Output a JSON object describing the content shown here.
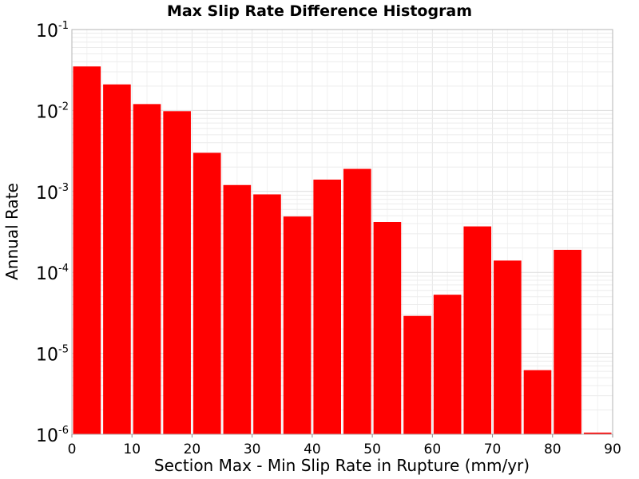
{
  "chart_data": {
    "type": "bar",
    "title": "Max Slip Rate Difference Histogram",
    "xlabel": "Section Max - Min Slip Rate in Rupture (mm/yr)",
    "ylabel": "Annual Rate",
    "x_scale": "linear",
    "y_scale": "log",
    "xlim": [
      0,
      90
    ],
    "ylim": [
      1e-06,
      0.1
    ],
    "x_ticks": [
      "0",
      "10",
      "20",
      "30",
      "40",
      "50",
      "60",
      "70",
      "80",
      "90"
    ],
    "y_ticks": [
      {
        "base": "10",
        "exp": "-1",
        "value": 0.1
      },
      {
        "base": "10",
        "exp": "-2",
        "value": 0.01
      },
      {
        "base": "10",
        "exp": "-3",
        "value": 0.001
      },
      {
        "base": "10",
        "exp": "-4",
        "value": 0.0001
      },
      {
        "base": "10",
        "exp": "-5",
        "value": 1e-05
      },
      {
        "base": "10",
        "exp": "-6",
        "value": 1e-06
      }
    ],
    "grid": true,
    "bar_color": "#ff0000",
    "bins": [
      {
        "x_start": 0,
        "x_end": 5,
        "value": 0.035
      },
      {
        "x_start": 5,
        "x_end": 10,
        "value": 0.021
      },
      {
        "x_start": 10,
        "x_end": 15,
        "value": 0.012
      },
      {
        "x_start": 15,
        "x_end": 20,
        "value": 0.0098
      },
      {
        "x_start": 20,
        "x_end": 25,
        "value": 0.003
      },
      {
        "x_start": 25,
        "x_end": 30,
        "value": 0.0012
      },
      {
        "x_start": 30,
        "x_end": 35,
        "value": 0.00092
      },
      {
        "x_start": 35,
        "x_end": 40,
        "value": 0.00049
      },
      {
        "x_start": 40,
        "x_end": 45,
        "value": 0.0014
      },
      {
        "x_start": 45,
        "x_end": 50,
        "value": 0.0019
      },
      {
        "x_start": 50,
        "x_end": 55,
        "value": 0.00042
      },
      {
        "x_start": 55,
        "x_end": 60,
        "value": 2.9e-05
      },
      {
        "x_start": 60,
        "x_end": 65,
        "value": 5.3e-05
      },
      {
        "x_start": 65,
        "x_end": 70,
        "value": 0.00037
      },
      {
        "x_start": 70,
        "x_end": 75,
        "value": 0.00014
      },
      {
        "x_start": 75,
        "x_end": 80,
        "value": 6.2e-06
      },
      {
        "x_start": 80,
        "x_end": 85,
        "value": 0.00019
      },
      {
        "x_start": 85,
        "x_end": 90,
        "value": 1.05e-06
      }
    ]
  }
}
